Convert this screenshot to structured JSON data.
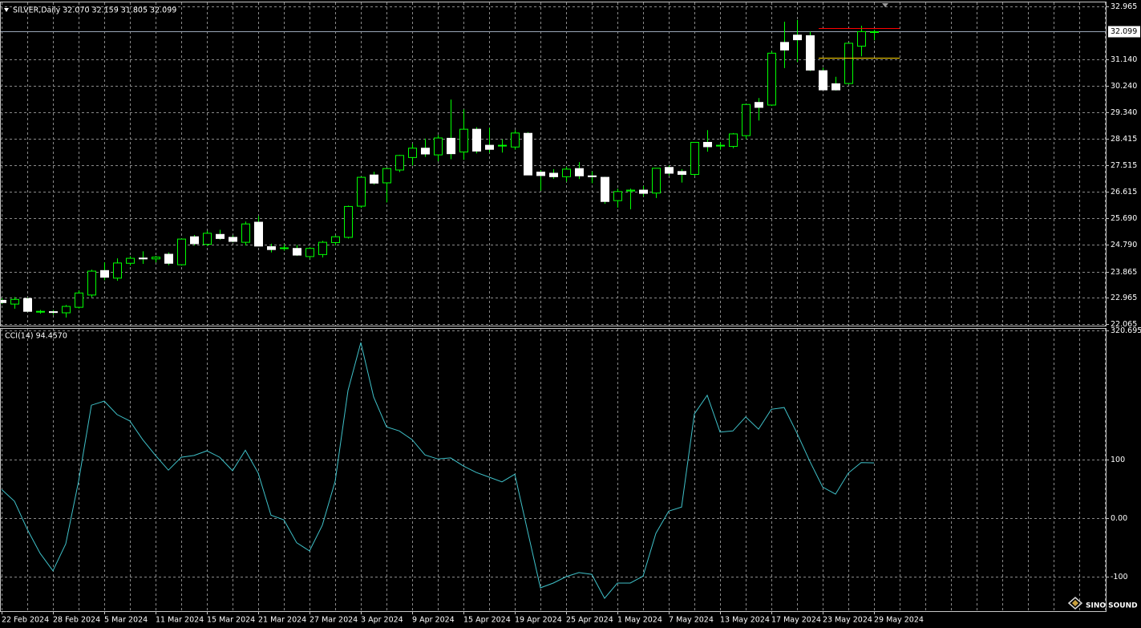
{
  "chart_data": [
    {
      "type": "candlestick",
      "title": "SILVER,Daily 32.070 32.159 31.805 32.099",
      "categories": [
        "22 Feb 2024",
        null,
        null,
        null,
        "28 Feb 2024",
        null,
        null,
        null,
        "5 Mar 2024",
        null,
        null,
        null,
        "11 Mar 2024",
        null,
        null,
        null,
        "15 Mar 2024",
        null,
        null,
        null,
        "21 Mar 2024",
        null,
        null,
        null,
        "27 Mar 2024",
        null,
        null,
        null,
        "3 Apr 2024",
        null,
        null,
        null,
        "9 Apr 2024",
        null,
        null,
        null,
        "15 Apr 2024",
        null,
        null,
        null,
        "19 Apr 2024",
        null,
        null,
        null,
        "25 Apr 2024",
        null,
        null,
        null,
        "1 May 2024",
        null,
        null,
        null,
        "7 May 2024",
        null,
        null,
        null,
        "13 May 2024",
        null,
        null,
        null,
        "17 May 2024",
        null,
        null,
        null,
        "23 May 2024",
        null,
        null,
        null,
        "29 May 2024"
      ],
      "open": [
        22.88,
        22.75,
        22.94,
        22.48,
        22.49,
        22.45,
        22.64,
        23.06,
        23.9,
        23.64,
        24.15,
        24.33,
        24.3,
        24.46,
        24.1,
        25.06,
        24.8,
        25.14,
        25.04,
        24.87,
        25.56,
        24.72,
        24.67,
        24.66,
        24.38,
        24.45,
        24.86,
        25.04,
        26.11,
        27.18,
        26.91,
        27.35,
        27.78,
        28.1,
        27.87,
        28.44,
        27.97,
        28.75,
        28.2,
        28.18,
        28.14,
        28.61,
        27.28,
        27.24,
        27.12,
        27.4,
        27.15,
        27.1,
        26.3,
        26.63,
        26.66,
        26.56,
        27.44,
        27.3,
        27.2,
        28.3,
        28.18,
        28.16,
        28.53,
        29.67,
        29.58,
        31.73,
        31.98,
        31.96,
        30.76,
        30.31,
        30.32,
        31.6,
        32.07
      ],
      "high": [
        22.95,
        22.99,
        22.97,
        22.55,
        22.55,
        22.72,
        23.22,
        23.93,
        24.18,
        24.32,
        24.39,
        24.56,
        24.4,
        24.52,
        24.99,
        25.12,
        25.26,
        25.3,
        25.1,
        25.58,
        25.77,
        24.82,
        24.8,
        24.78,
        24.7,
        24.92,
        25.11,
        26.13,
        27.13,
        27.29,
        27.42,
        27.87,
        28.25,
        28.43,
        28.55,
        29.77,
        29.43,
        28.82,
        28.8,
        28.4,
        28.72,
        28.65,
        27.35,
        27.38,
        27.46,
        27.62,
        27.3,
        27.12,
        26.71,
        26.71,
        26.8,
        27.42,
        27.5,
        27.38,
        28.31,
        28.72,
        28.3,
        28.62,
        29.6,
        29.82,
        31.43,
        32.44,
        32.5,
        32.1,
        30.86,
        30.55,
        31.72,
        32.3,
        32.159
      ],
      "low": [
        22.75,
        22.59,
        22.48,
        22.42,
        22.38,
        22.29,
        22.6,
        22.98,
        23.57,
        23.55,
        24.07,
        24.13,
        24.18,
        24.08,
        24.07,
        24.76,
        24.74,
        24.95,
        24.87,
        24.76,
        24.73,
        24.52,
        24.58,
        24.4,
        24.31,
        24.35,
        24.76,
        25.0,
        26.05,
        26.85,
        26.24,
        27.28,
        27.5,
        27.8,
        27.65,
        27.72,
        27.7,
        27.92,
        27.95,
        27.95,
        28.05,
        27.18,
        26.64,
        27.05,
        26.95,
        27.04,
        26.9,
        26.19,
        26.06,
        26.0,
        26.44,
        26.39,
        27.16,
        26.92,
        27.15,
        27.98,
        28.05,
        28.1,
        28.41,
        29.05,
        29.55,
        30.85,
        31.06,
        30.75,
        30.1,
        30.08,
        30.3,
        31.25,
        31.805
      ],
      "close": [
        22.8,
        22.91,
        22.5,
        22.5,
        22.46,
        22.67,
        23.13,
        23.88,
        23.67,
        24.16,
        24.32,
        24.3,
        24.36,
        24.15,
        24.98,
        24.82,
        25.18,
        25.0,
        24.9,
        25.5,
        24.74,
        24.62,
        24.68,
        24.43,
        24.66,
        24.87,
        25.06,
        26.1,
        27.1,
        26.9,
        27.4,
        27.85,
        28.1,
        27.9,
        28.45,
        27.91,
        28.75,
        28.0,
        28.06,
        28.2,
        28.62,
        27.18,
        27.16,
        27.12,
        27.38,
        27.15,
        27.12,
        26.27,
        26.61,
        26.66,
        26.55,
        27.41,
        27.24,
        27.2,
        28.3,
        28.15,
        28.2,
        28.59,
        29.6,
        29.5,
        31.36,
        31.47,
        31.82,
        30.78,
        30.1,
        30.1,
        31.7,
        32.1,
        32.099
      ],
      "bull_color": "#000000",
      "bear_color": "#ffffff",
      "wick_color": "#00ff00",
      "last_price": 32.099,
      "levels": [
        {
          "value": 32.22,
          "color": "#ff0000"
        },
        {
          "value": 31.2,
          "color": "#ffd700"
        }
      ],
      "ylim": [
        22.065,
        32.965
      ],
      "yticks": [
        32.965,
        {
          "value": 31.14,
          "label": "31.140"
        },
        {
          "value": 30.24,
          "label": "30.240"
        },
        {
          "value": 29.34,
          "label": "29.340"
        },
        28.415,
        27.515,
        26.615,
        {
          "value": 25.69,
          "label": "25.690"
        },
        {
          "value": 24.79,
          "label": "24.790"
        },
        23.865,
        22.965,
        22.065
      ],
      "grid": true
    },
    {
      "type": "line",
      "title": "CCI(14) 94.4570",
      "color": "#3fc1c9",
      "values": [
        49,
        29,
        -19,
        -60,
        -90,
        -44,
        63,
        193,
        200,
        177,
        166,
        134,
        107,
        82,
        104,
        107,
        115,
        104,
        81,
        116,
        77,
        5,
        -3,
        -42,
        -56,
        -12,
        63,
        218,
        300,
        207,
        156,
        149,
        134,
        108,
        101,
        103,
        89,
        78,
        70,
        62,
        75,
        -22,
        -119,
        -111,
        -100,
        -93,
        -96,
        -137,
        -111,
        -111,
        -99,
        -26,
        12,
        19,
        178,
        210,
        147,
        149,
        173,
        152,
        186,
        189,
        145,
        97,
        53,
        41,
        77,
        95,
        94.457
      ],
      "ylim": [
        -156.2,
        320.6958
      ],
      "yticks": [
        320.6958,
        100,
        {
          "value": 0,
          "label": "0.00"
        },
        -100
      ],
      "grid": true
    }
  ],
  "watermark": "SINO SOUND"
}
